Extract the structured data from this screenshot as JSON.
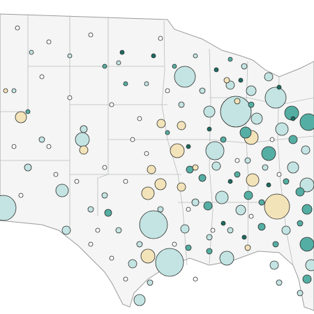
{
  "chart_data": {
    "type": "bubble-map",
    "series": [
      {
        "color": "#c3e4e2",
        "values": [
          225,
          484,
          225,
          169,
          400,
          400,
          324,
          100,
          81,
          81,
          100,
          81,
          100,
          64,
          64,
          64,
          64,
          64,
          49,
          36,
          36,
          36,
          36,
          49,
          36,
          36,
          36,
          36,
          25,
          36,
          25,
          25,
          16,
          16,
          16,
          16,
          16,
          16,
          16,
          16,
          16,
          16,
          16,
          9,
          9,
          9,
          9,
          9,
          9,
          16,
          16,
          16,
          16,
          16
        ]
      },
      {
        "color": "#55aea3",
        "values": [
          144,
          100,
          100,
          64,
          100,
          25,
          25,
          49,
          36,
          36,
          36,
          36,
          25,
          36,
          25,
          9,
          9,
          9,
          9,
          16,
          16,
          16,
          16,
          16,
          16,
          16,
          16,
          9,
          16,
          9
        ]
      },
      {
        "color": "#1d6b62",
        "values": [
          9,
          9,
          9,
          9,
          9,
          9,
          9,
          9,
          9,
          9,
          9,
          9
        ]
      },
      {
        "color": "#f3e3b9",
        "values": [
          324,
          100,
          100,
          81,
          81,
          100,
          64,
          64,
          36,
          36,
          36,
          36,
          36,
          16,
          16,
          16,
          9,
          16
        ]
      },
      {
        "color": "#ffffff",
        "values": [
          9,
          9,
          9,
          9,
          9,
          9,
          9,
          9,
          9,
          9,
          9,
          9,
          9,
          9,
          9,
          9,
          9,
          9,
          9,
          9,
          9,
          9,
          9,
          9,
          9,
          9,
          9,
          9,
          9,
          9
        ]
      }
    ]
  }
}
